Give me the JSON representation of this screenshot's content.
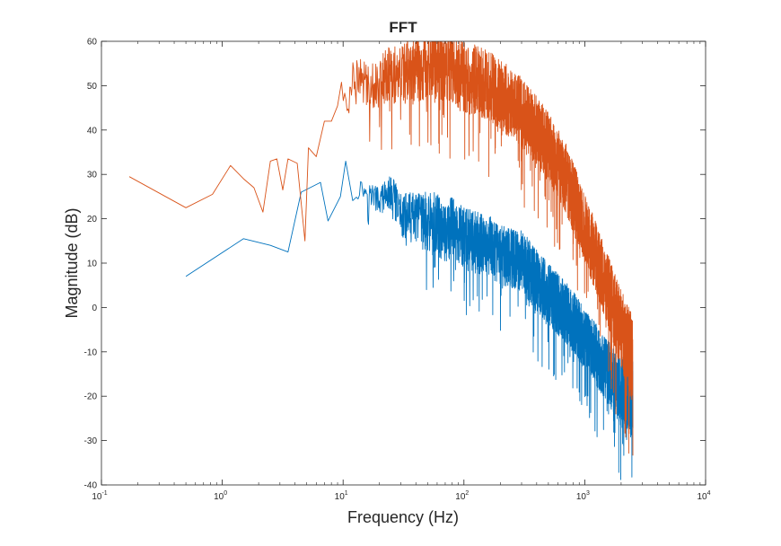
{
  "chart_data": {
    "type": "line",
    "title": "FFT",
    "xlabel": "Frequency (Hz)",
    "ylabel": "Magnitude (dB)",
    "xscale": "log",
    "xlim": [
      0.1,
      10000
    ],
    "ylim": [
      -40,
      60
    ],
    "grid": false,
    "x_tick_labels": [
      {
        "base": "10",
        "exp": "-1"
      },
      {
        "base": "10",
        "exp": "0"
      },
      {
        "base": "10",
        "exp": "1"
      },
      {
        "base": "10",
        "exp": "2"
      },
      {
        "base": "10",
        "exp": "3"
      },
      {
        "base": "10",
        "exp": "4"
      }
    ],
    "y_tick_labels": [
      "60",
      "50",
      "40",
      "30",
      "20",
      "10",
      "0",
      "-10",
      "-20",
      "-30",
      "-40"
    ],
    "series": [
      {
        "color": "#0072BD",
        "x": [
          0.5,
          1.5,
          2.5,
          3.5,
          4.5,
          6.5,
          7.5,
          9.5,
          10.5,
          12.0,
          14.0,
          17.0,
          20.0,
          25.0,
          30.0,
          40.0,
          50.0,
          60.0,
          70.0,
          80.0,
          100.0,
          130.0,
          160.0,
          200.0,
          300.0,
          400.0,
          500.0,
          700.0,
          1000.0,
          1500.0,
          2000.0,
          2500.0
        ],
        "y": [
          7.0,
          15.5,
          14.0,
          12.5,
          26.0,
          28.2,
          19.5,
          25.0,
          33.0,
          25.0,
          27.0,
          25.5,
          24.0,
          26.0,
          21.0,
          20.0,
          19.0,
          19.0,
          16.5,
          18.0,
          15.5,
          14.5,
          14.0,
          12.0,
          10.5,
          6.0,
          3.0,
          -1.0,
          -7.0,
          -14.0,
          -19.0,
          -20.0
        ],
        "spread": [
          0.0,
          0.0,
          0.0,
          0.0,
          0.0,
          0.0,
          0.0,
          0.0,
          0.0,
          2.0,
          2.0,
          3.0,
          3.0,
          4.0,
          5.0,
          6.0,
          7.0,
          7.0,
          7.0,
          7.0,
          7.0,
          7.0,
          7.0,
          7.0,
          7.0,
          7.0,
          7.0,
          7.0,
          7.0,
          7.0,
          8.0,
          8.0
        ]
      },
      {
        "color": "#D95319",
        "x": [
          0.17,
          0.5,
          0.83,
          1.17,
          1.5,
          1.83,
          2.17,
          2.5,
          2.83,
          3.17,
          3.5,
          4.17,
          4.83,
          5.17,
          6.0,
          7.0,
          8.0,
          9.0,
          10.0,
          11.0,
          12.0,
          14.0,
          17.0,
          20.0,
          25.0,
          30.0,
          40.0,
          50.0,
          60.0,
          70.0,
          80.0,
          100.0,
          130.0,
          160.0,
          200.0,
          300.0,
          400.0,
          500.0,
          700.0,
          1000.0,
          1500.0,
          2000.0,
          2500.0
        ],
        "y": [
          29.5,
          22.5,
          25.5,
          32.0,
          29.0,
          27.0,
          21.5,
          33.0,
          33.5,
          26.5,
          33.5,
          32.5,
          15.0,
          36.0,
          34.0,
          42.0,
          42.0,
          46.5,
          48.0,
          46.0,
          53.0,
          51.0,
          50.0,
          51.0,
          53.0,
          52.0,
          54.0,
          55.0,
          55.0,
          54.0,
          54.0,
          52.0,
          51.0,
          50.0,
          48.0,
          44.0,
          40.0,
          36.0,
          29.0,
          18.0,
          5.0,
          -5.0,
          -12.0
        ],
        "spread": [
          0.0,
          0.0,
          0.0,
          0.0,
          0.0,
          0.0,
          0.0,
          0.0,
          0.0,
          0.0,
          0.0,
          0.0,
          0.0,
          0.0,
          0.0,
          0.0,
          0.0,
          3.0,
          4.0,
          4.0,
          4.0,
          5.0,
          5.0,
          6.0,
          7.0,
          7.0,
          8.0,
          8.0,
          8.0,
          8.0,
          8.0,
          8.0,
          8.0,
          8.0,
          8.0,
          8.0,
          8.0,
          8.0,
          8.0,
          8.0,
          8.0,
          9.0,
          10.0
        ]
      }
    ]
  }
}
